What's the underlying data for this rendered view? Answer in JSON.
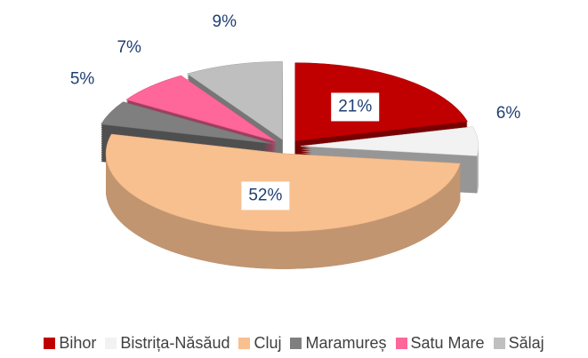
{
  "chart_data": {
    "type": "pie",
    "categories": [
      "Bihor",
      "Bistrița-Năsăud",
      "Cluj",
      "Maramureș",
      "Satu Mare",
      "Sălaj"
    ],
    "values": [
      21,
      6,
      52,
      5,
      7,
      9
    ],
    "value_labels": [
      "21%",
      "6%",
      "52%",
      "5%",
      "7%",
      "9%"
    ],
    "colors": [
      "#c00000",
      "#f2f2f2",
      "#f8bf8f",
      "#7f7f7f",
      "#ff6699",
      "#bfbfbf"
    ],
    "legend": "bottom"
  }
}
